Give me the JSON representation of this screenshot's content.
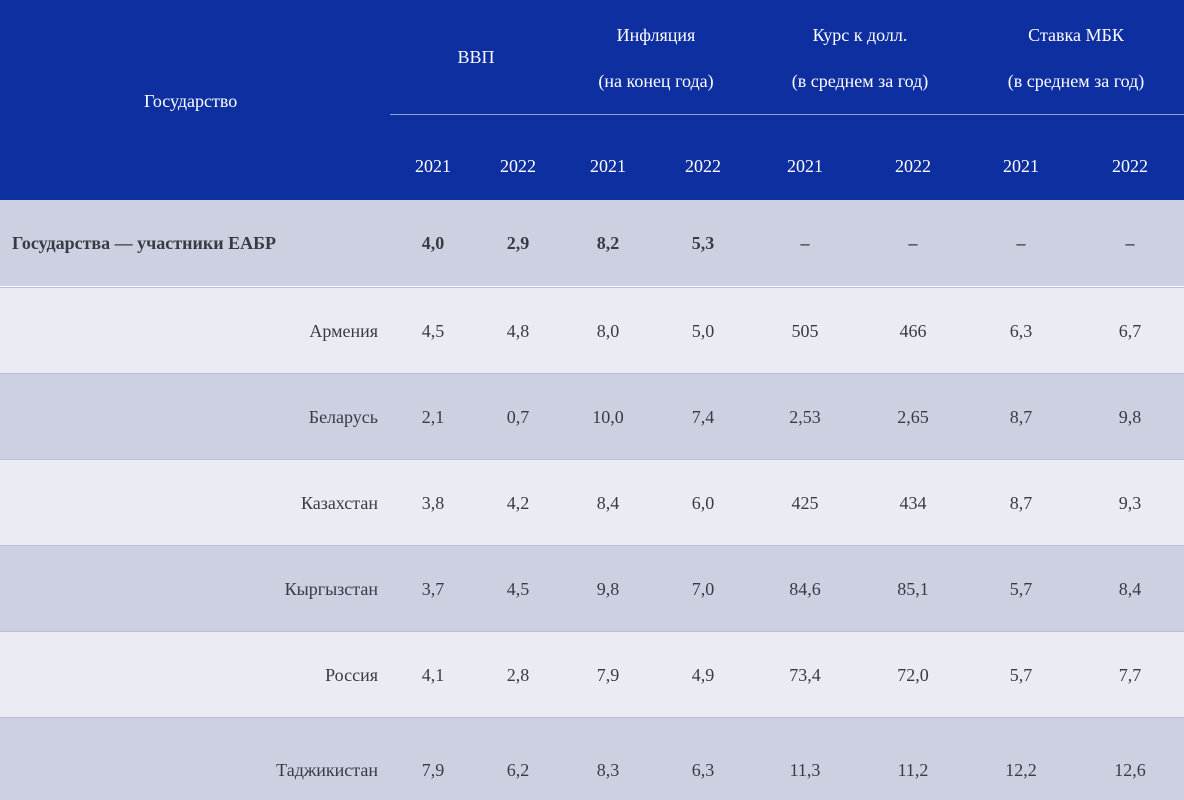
{
  "table": {
    "header": {
      "state": "Государство",
      "groups": [
        {
          "line1": "ВВП",
          "line2": ""
        },
        {
          "line1": "Инфляция",
          "line2": "(на конец года)"
        },
        {
          "line1": "Курс к долл.",
          "line2": "(в среднем за год)"
        },
        {
          "line1": "Ставка МБК",
          "line2": "(в среднем за год)"
        }
      ],
      "years": [
        "2021",
        "2022",
        "2021",
        "2022",
        "2021",
        "2022",
        "2021",
        "2022"
      ]
    },
    "rows": [
      {
        "name": "Государства — участники ЕАБР",
        "values": [
          "4,0",
          "2,9",
          "8,2",
          "5,3",
          "–",
          "–",
          "–",
          "–"
        ]
      },
      {
        "name": "Армения",
        "values": [
          "4,5",
          "4,8",
          "8,0",
          "5,0",
          "505",
          "466",
          "6,3",
          "6,7"
        ]
      },
      {
        "name": "Беларусь",
        "values": [
          "2,1",
          "0,7",
          "10,0",
          "7,4",
          "2,53",
          "2,65",
          "8,7",
          "9,8"
        ]
      },
      {
        "name": "Казахстан",
        "values": [
          "3,8",
          "4,2",
          "8,4",
          "6,0",
          "425",
          "434",
          "8,7",
          "9,3"
        ]
      },
      {
        "name": "Кыргызстан",
        "values": [
          "3,7",
          "4,5",
          "9,8",
          "7,0",
          "84,6",
          "85,1",
          "5,7",
          "8,4"
        ]
      },
      {
        "name": "Россия",
        "values": [
          "4,1",
          "2,8",
          "7,9",
          "4,9",
          "73,4",
          "72,0",
          "5,7",
          "7,7"
        ]
      },
      {
        "name": "Таджикистан",
        "values": [
          "7,9",
          "6,2",
          "8,3",
          "6,3",
          "11,3",
          "11,2",
          "12,2",
          "12,6"
        ]
      }
    ]
  },
  "colors": {
    "header_bg": "#0d2fa0",
    "row_dark": "#cdd0e1",
    "row_light": "#eaebf3",
    "text": "#3a3a44"
  }
}
